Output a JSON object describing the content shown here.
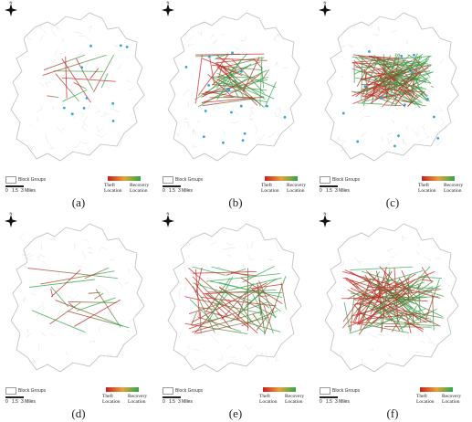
{
  "panels": [
    {
      "caption": "(a)"
    },
    {
      "caption": "(b)"
    },
    {
      "caption": "(c)"
    },
    {
      "caption": "(d)"
    },
    {
      "caption": "(e)"
    },
    {
      "caption": "(f)"
    }
  ],
  "legend": {
    "block_groups": "Block Groups",
    "scale_0": "0",
    "scale_1": "1.5",
    "scale_2": "3 Miles",
    "theft": "Theft",
    "theft_sub": "Location",
    "recovery": "Recovery",
    "recovery_sub": "Location"
  },
  "north_label": "N",
  "colors": {
    "theft": "#c81e1e",
    "recovery": "#2ca84a",
    "points": "#2fa6dd",
    "boundary": "#c8c8c8"
  }
}
